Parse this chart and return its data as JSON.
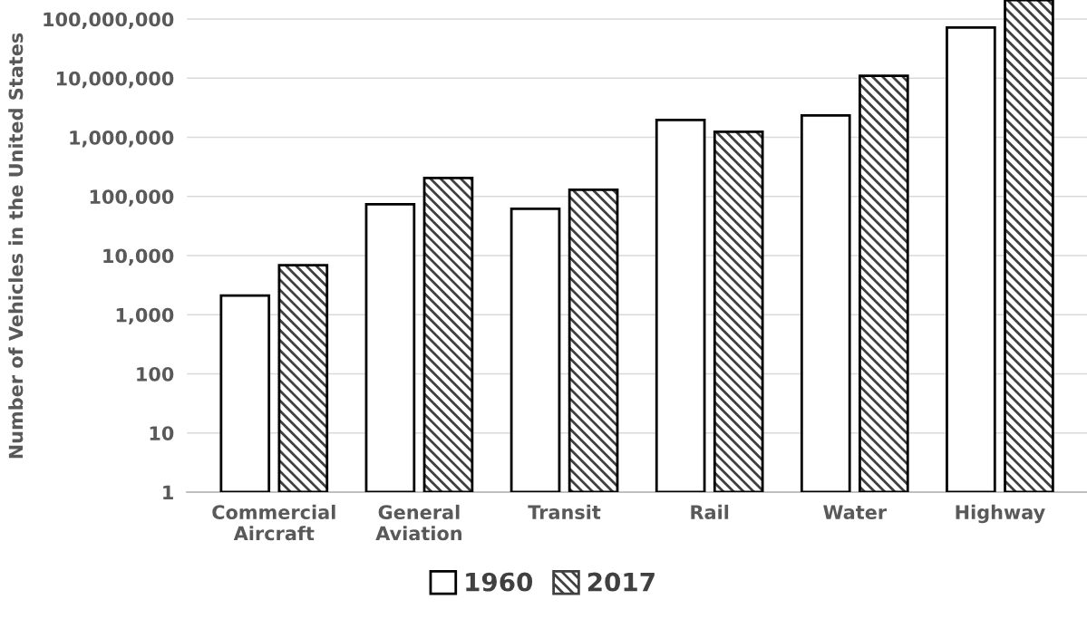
{
  "chart_data": {
    "type": "bar",
    "ylabel": "Number of Vehicles in the United States",
    "categories": [
      "Commercial\nAircraft",
      "General\nAviation",
      "Transit",
      "Rail",
      "Water",
      "Highway"
    ],
    "series": [
      {
        "name": "1960",
        "color": "#ffffff",
        "values": [
          2100,
          74000,
          62000,
          1960000,
          2350000,
          72000000
        ]
      },
      {
        "name": "2017",
        "color": "#404040",
        "values": [
          6900,
          205000,
          130000,
          1240000,
          11000000,
          210000000
        ]
      }
    ],
    "log": true,
    "ylim": [
      1,
      210000000
    ],
    "yticks": [
      {
        "value": 1,
        "label": "1"
      },
      {
        "value": 10,
        "label": "10"
      },
      {
        "value": 100,
        "label": "100"
      },
      {
        "value": 1000,
        "label": "1,000"
      },
      {
        "value": 10000,
        "label": "10,000"
      },
      {
        "value": 100000,
        "label": "100,000"
      },
      {
        "value": 1000000,
        "label": "1,000,000"
      },
      {
        "value": 10000000,
        "label": "10,000,000"
      },
      {
        "value": 100000000,
        "label": "100,000,000"
      }
    ],
    "grid": "y",
    "legend": "bottom"
  }
}
